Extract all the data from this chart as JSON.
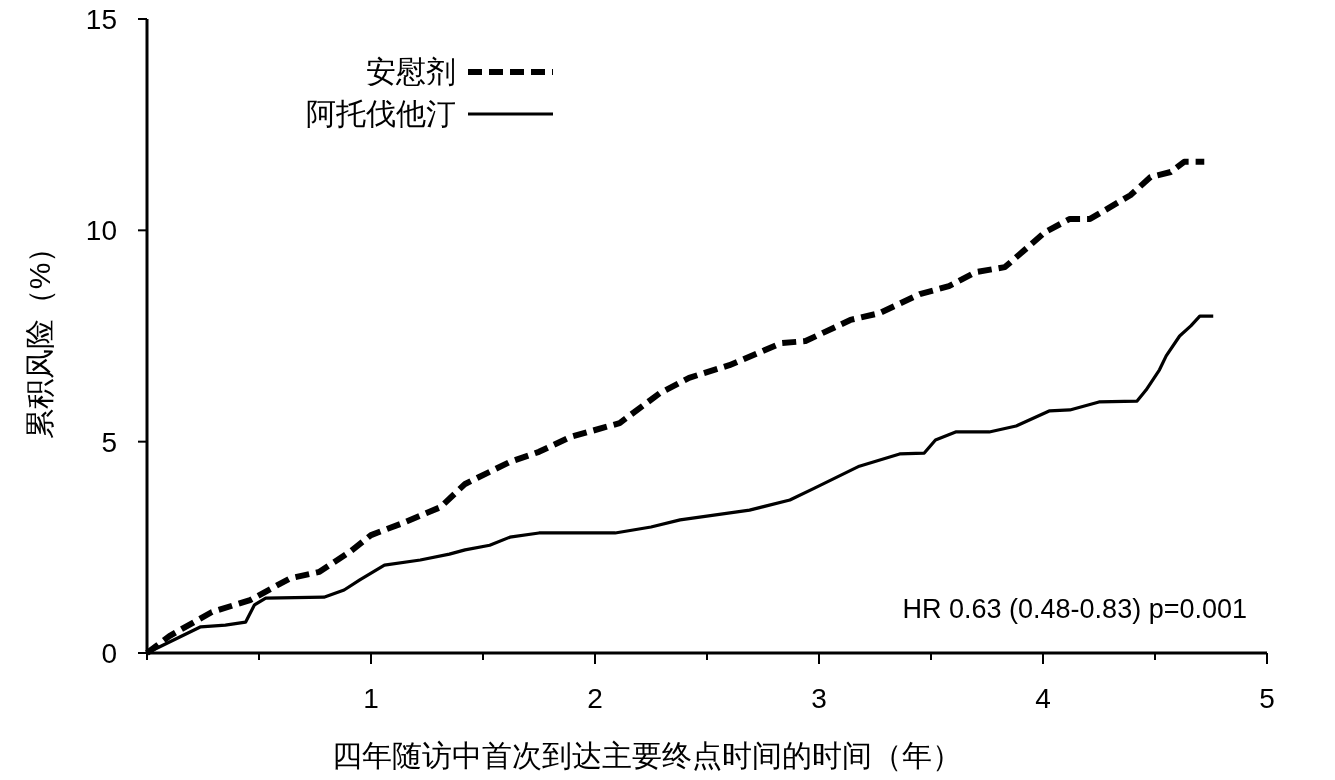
{
  "chart_data": {
    "type": "line",
    "xlabel": "四年随访中首次到达主要终点时间的时间（年）",
    "ylabel": "累积风险（%）",
    "xlim": [
      0,
      5
    ],
    "ylim": [
      0,
      15
    ],
    "xticks": [
      {
        "value": 0,
        "label": null
      },
      {
        "value": 0.5,
        "label": null
      },
      1,
      {
        "value": 1.5,
        "label": null
      },
      2,
      {
        "value": 2.5,
        "label": null
      },
      3,
      {
        "value": 3.5,
        "label": null
      },
      4,
      {
        "value": 4.5,
        "label": null
      },
      5
    ],
    "yticks": [
      0,
      5,
      10,
      15
    ],
    "grid": false,
    "legend": "top left",
    "marker": "none",
    "annotations": [
      "HR 0.63 (0.48-0.83) p=0.001"
    ],
    "series": [
      {
        "name": "安慰剂",
        "color": "#000000",
        "line_style": "dashed",
        "x": [
          0,
          0.1,
          0.29,
          0.46,
          0.64,
          0.77,
          0.91,
          1.0,
          1.13,
          1.31,
          1.42,
          1.62,
          1.75,
          1.89,
          2.11,
          2.29,
          2.42,
          2.6,
          2.83,
          2.94,
          3.14,
          3.27,
          3.45,
          3.58,
          3.7,
          3.83,
          4.01,
          4.12,
          4.21,
          4.39,
          4.48,
          4.57,
          4.63,
          4.72
        ],
        "values": [
          0,
          0.4,
          0.97,
          1.25,
          1.77,
          1.92,
          2.41,
          2.79,
          3.05,
          3.45,
          4.0,
          4.52,
          4.76,
          5.11,
          5.44,
          6.15,
          6.51,
          6.81,
          7.33,
          7.38,
          7.88,
          8.04,
          8.49,
          8.68,
          9.01,
          9.13,
          9.96,
          10.27,
          10.27,
          10.83,
          11.26,
          11.38,
          11.62,
          11.62
        ]
      },
      {
        "name": "阿托伐他汀",
        "color": "#000000",
        "line_style": "solid",
        "x": [
          0,
          0.24,
          0.35,
          0.44,
          0.48,
          0.53,
          0.79,
          0.88,
          0.95,
          1.06,
          1.22,
          1.35,
          1.42,
          1.53,
          1.62,
          1.75,
          2.09,
          2.25,
          2.38,
          2.69,
          2.87,
          2.98,
          3.18,
          3.36,
          3.47,
          3.52,
          3.61,
          3.76,
          3.88,
          4.03,
          4.12,
          4.25,
          4.42,
          4.46,
          4.52,
          4.55,
          4.61,
          4.66,
          4.7,
          4.76
        ],
        "values": [
          0,
          0.62,
          0.66,
          0.73,
          1.14,
          1.3,
          1.32,
          1.49,
          1.73,
          2.08,
          2.2,
          2.34,
          2.44,
          2.55,
          2.74,
          2.84,
          2.84,
          2.98,
          3.15,
          3.38,
          3.62,
          3.9,
          4.42,
          4.71,
          4.73,
          5.04,
          5.23,
          5.23,
          5.37,
          5.73,
          5.75,
          5.94,
          5.96,
          6.22,
          6.7,
          7.03,
          7.5,
          7.74,
          7.97,
          7.97
        ]
      }
    ]
  }
}
